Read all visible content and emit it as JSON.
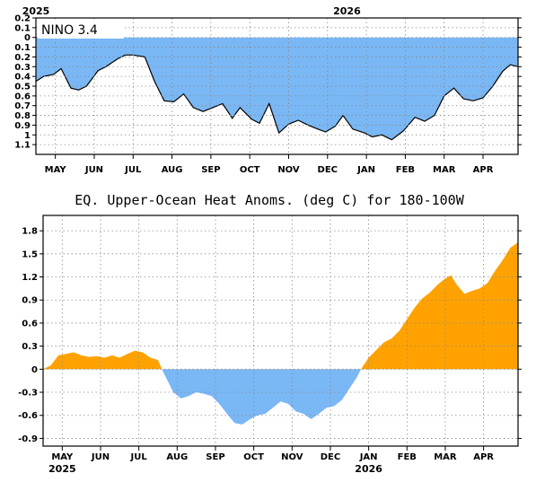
{
  "chart_data": [
    {
      "type": "area",
      "title": "NINO 3.4",
      "xlabel": "",
      "ylabel": "",
      "ylim": [
        -1.2,
        0.2
      ],
      "y_reversed_labels": true,
      "yticks": [
        0.2,
        0.1,
        0,
        -0.1,
        -0.2,
        -0.3,
        -0.4,
        -0.5,
        -0.6,
        -0.7,
        -0.8,
        -0.9,
        -1,
        -1.1
      ],
      "ytick_labels": [
        "0.2",
        "0.1",
        "0",
        "0.1",
        "0.2",
        "0.3",
        "0.4",
        "0.5",
        "0.6",
        "0.7",
        "0.8",
        "0.9",
        "1",
        "1.1"
      ],
      "xlim": [
        0,
        12.4
      ],
      "x_ticks": [
        {
          "x": 0.5,
          "label": "MAY"
        },
        {
          "x": 1.5,
          "label": "JUN"
        },
        {
          "x": 2.5,
          "label": "JUL"
        },
        {
          "x": 3.5,
          "label": "AUG"
        },
        {
          "x": 4.5,
          "label": "SEP"
        },
        {
          "x": 5.5,
          "label": "OCT"
        },
        {
          "x": 6.5,
          "label": "NOV"
        },
        {
          "x": 7.5,
          "label": "DEC"
        },
        {
          "x": 8.5,
          "label": "JAN"
        },
        {
          "x": 9.5,
          "label": "FEB"
        },
        {
          "x": 10.5,
          "label": "MAR"
        },
        {
          "x": 11.5,
          "label": "APR"
        }
      ],
      "year_labels": [
        {
          "x": 0,
          "label": "2025"
        },
        {
          "x": 8.0,
          "label": "2026"
        }
      ],
      "grid": true,
      "fill_color": "#7ab7f5",
      "line_color": "#000000",
      "points": [
        [
          0,
          -0.45
        ],
        [
          0.2,
          -0.4
        ],
        [
          0.45,
          -0.38
        ],
        [
          0.65,
          -0.32
        ],
        [
          0.9,
          -0.52
        ],
        [
          1.1,
          -0.54
        ],
        [
          1.3,
          -0.5
        ],
        [
          1.6,
          -0.34
        ],
        [
          1.8,
          -0.3
        ],
        [
          2.1,
          -0.22
        ],
        [
          2.3,
          -0.18
        ],
        [
          2.5,
          -0.18
        ],
        [
          2.8,
          -0.2
        ],
        [
          3.05,
          -0.45
        ],
        [
          3.3,
          -0.65
        ],
        [
          3.55,
          -0.66
        ],
        [
          3.8,
          -0.58
        ],
        [
          4.05,
          -0.72
        ],
        [
          4.3,
          -0.76
        ],
        [
          4.55,
          -0.72
        ],
        [
          4.8,
          -0.68
        ],
        [
          5.05,
          -0.83
        ],
        [
          5.25,
          -0.72
        ],
        [
          5.55,
          -0.84
        ],
        [
          5.75,
          -0.88
        ],
        [
          6.0,
          -0.68
        ],
        [
          6.25,
          -0.98
        ],
        [
          6.5,
          -0.89
        ],
        [
          6.75,
          -0.85
        ],
        [
          7.0,
          -0.9
        ],
        [
          7.25,
          -0.94
        ],
        [
          7.45,
          -0.97
        ],
        [
          7.7,
          -0.91
        ],
        [
          7.9,
          -0.8
        ],
        [
          8.15,
          -0.94
        ],
        [
          8.45,
          -0.98
        ],
        [
          8.65,
          -1.02
        ],
        [
          8.9,
          -1.0
        ],
        [
          9.15,
          -1.05
        ],
        [
          9.45,
          -0.96
        ],
        [
          9.75,
          -0.82
        ],
        [
          10.0,
          -0.86
        ],
        [
          10.25,
          -0.8
        ],
        [
          10.5,
          -0.6
        ],
        [
          10.75,
          -0.52
        ],
        [
          11.0,
          -0.63
        ],
        [
          11.25,
          -0.65
        ],
        [
          11.5,
          -0.62
        ],
        [
          11.75,
          -0.5
        ],
        [
          12.0,
          -0.35
        ],
        [
          12.2,
          -0.28
        ],
        [
          12.4,
          -0.3
        ]
      ]
    },
    {
      "type": "area",
      "title": "EQ. Upper-Ocean Heat Anoms. (deg C) for 180-100W",
      "xlabel": "",
      "ylabel": "",
      "ylim": [
        -1.0,
        2.0
      ],
      "yticks": [
        1.8,
        1.5,
        1.2,
        0.9,
        0.6,
        0.3,
        0,
        -0.3,
        -0.6,
        -0.9
      ],
      "ytick_labels": [
        "1.8",
        "1.5",
        "1.2",
        "0.9",
        "0.6",
        "0.3",
        "0",
        "-0.3",
        "-0.6",
        "-0.9"
      ],
      "xlim": [
        0,
        12.4
      ],
      "x_ticks": [
        {
          "x": 0.5,
          "label": "MAY"
        },
        {
          "x": 1.5,
          "label": "JUN"
        },
        {
          "x": 2.5,
          "label": "JUL"
        },
        {
          "x": 3.5,
          "label": "AUG"
        },
        {
          "x": 4.5,
          "label": "SEP"
        },
        {
          "x": 5.5,
          "label": "OCT"
        },
        {
          "x": 6.5,
          "label": "NOV"
        },
        {
          "x": 7.5,
          "label": "DEC"
        },
        {
          "x": 8.5,
          "label": "JAN"
        },
        {
          "x": 9.5,
          "label": "FEB"
        },
        {
          "x": 10.5,
          "label": "MAR"
        },
        {
          "x": 11.5,
          "label": "APR"
        }
      ],
      "year_labels": [
        {
          "x": 0.5,
          "label": "2025"
        },
        {
          "x": 8.5,
          "label": "2026"
        }
      ],
      "grid": true,
      "positive_color": "#ffa200",
      "negative_color": "#7ab7f5",
      "points": [
        [
          0,
          0.0
        ],
        [
          0.2,
          0.05
        ],
        [
          0.4,
          0.18
        ],
        [
          0.6,
          0.2
        ],
        [
          0.8,
          0.22
        ],
        [
          1.0,
          0.18
        ],
        [
          1.2,
          0.16
        ],
        [
          1.4,
          0.17
        ],
        [
          1.6,
          0.15
        ],
        [
          1.8,
          0.18
        ],
        [
          2.0,
          0.15
        ],
        [
          2.2,
          0.2
        ],
        [
          2.4,
          0.24
        ],
        [
          2.6,
          0.22
        ],
        [
          2.8,
          0.15
        ],
        [
          3.0,
          0.12
        ],
        [
          3.1,
          0.0
        ],
        [
          3.2,
          -0.1
        ],
        [
          3.4,
          -0.3
        ],
        [
          3.6,
          -0.38
        ],
        [
          3.8,
          -0.35
        ],
        [
          4.0,
          -0.3
        ],
        [
          4.2,
          -0.32
        ],
        [
          4.4,
          -0.35
        ],
        [
          4.6,
          -0.45
        ],
        [
          4.8,
          -0.58
        ],
        [
          5.0,
          -0.7
        ],
        [
          5.2,
          -0.72
        ],
        [
          5.4,
          -0.65
        ],
        [
          5.6,
          -0.6
        ],
        [
          5.8,
          -0.58
        ],
        [
          6.0,
          -0.5
        ],
        [
          6.2,
          -0.42
        ],
        [
          6.4,
          -0.45
        ],
        [
          6.6,
          -0.55
        ],
        [
          6.8,
          -0.58
        ],
        [
          7.0,
          -0.65
        ],
        [
          7.2,
          -0.58
        ],
        [
          7.4,
          -0.5
        ],
        [
          7.6,
          -0.48
        ],
        [
          7.8,
          -0.4
        ],
        [
          8.0,
          -0.25
        ],
        [
          8.2,
          -0.1
        ],
        [
          8.3,
          0.0
        ],
        [
          8.5,
          0.15
        ],
        [
          8.7,
          0.25
        ],
        [
          8.9,
          0.35
        ],
        [
          9.1,
          0.4
        ],
        [
          9.3,
          0.5
        ],
        [
          9.5,
          0.65
        ],
        [
          9.7,
          0.8
        ],
        [
          9.9,
          0.92
        ],
        [
          10.1,
          1.0
        ],
        [
          10.3,
          1.1
        ],
        [
          10.5,
          1.18
        ],
        [
          10.65,
          1.22
        ],
        [
          10.8,
          1.1
        ],
        [
          11.0,
          0.98
        ],
        [
          11.2,
          1.02
        ],
        [
          11.4,
          1.05
        ],
        [
          11.6,
          1.12
        ],
        [
          11.8,
          1.28
        ],
        [
          12.0,
          1.42
        ],
        [
          12.2,
          1.58
        ],
        [
          12.4,
          1.65
        ]
      ]
    }
  ]
}
